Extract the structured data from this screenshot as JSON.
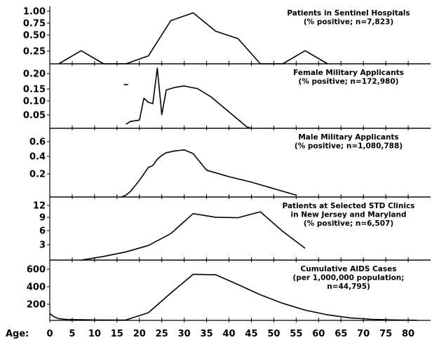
{
  "chart_data": {
    "type": "line",
    "x_axis": {
      "label": "Age:",
      "ticks": [
        0,
        5,
        10,
        15,
        20,
        25,
        30,
        35,
        40,
        45,
        50,
        55,
        60,
        65,
        70,
        75,
        80
      ],
      "range": [
        0,
        85
      ]
    },
    "panels": [
      {
        "title_lines": [
          "Patients in Sentinel Hospitals",
          "(% positive; n=7,823)"
        ],
        "ylim": [
          0,
          1.0
        ],
        "yticks": [
          "1.00",
          "0.75",
          "0.50",
          "0.25"
        ],
        "ytick_values": [
          1.0,
          0.75,
          0.5,
          0.25
        ],
        "series": [
          {
            "x": [
              2,
              7,
              12,
              17,
              22,
              27,
              32,
              37,
              42,
              47,
              52,
              57,
              62
            ],
            "y": [
              0,
              0.25,
              0,
              0,
              0.15,
              0.82,
              0.97,
              0.62,
              0.48,
              0,
              0,
              0.25,
              0
            ]
          }
        ]
      },
      {
        "title_lines": [
          "Female Military Applicants",
          "(% positive; n=172,980)"
        ],
        "ylim": [
          0,
          0.22
        ],
        "yticks": [
          "0.20",
          "0.15",
          "0.10",
          "0.05"
        ],
        "ytick_values": [
          0.2,
          0.15,
          0.1,
          0.05
        ],
        "series": [
          {
            "x": [
              17,
              18,
              20,
              21,
              22,
              23,
              24,
              25,
              26,
              28,
              30,
              33,
              36,
              40,
              44,
              45
            ],
            "y": [
              0.015,
              0.025,
              0.03,
              0.11,
              0.095,
              0.09,
              0.22,
              0.05,
              0.14,
              0.15,
              0.155,
              0.145,
              0.115,
              0.06,
              0.005,
              0
            ]
          },
          {
            "x": [
              16.5,
              17.5
            ],
            "y": [
              0.16,
              0.16
            ]
          }
        ]
      },
      {
        "title_lines": [
          "Male Military Applicants",
          "(% positive; n=1,080,788)"
        ],
        "ylim": [
          0,
          0.6
        ],
        "yticks": [
          "0.6",
          "0.4",
          "0.2"
        ],
        "ytick_values": [
          0.6,
          0.4,
          0.2
        ],
        "series": [
          {
            "x": [
              16,
              17,
              18,
              20,
              22,
              23,
              24,
              25,
              26,
              28,
              30,
              32,
              35,
              40,
              45,
              50,
              55
            ],
            "y": [
              0,
              0.02,
              0.06,
              0.18,
              0.32,
              0.34,
              0.41,
              0.45,
              0.48,
              0.5,
              0.51,
              0.47,
              0.29,
              0.22,
              0.16,
              0.09,
              0.02
            ]
          }
        ]
      },
      {
        "title_lines": [
          "Patients at Selected STD Clinics",
          "in New Jersey and Maryland",
          "(% positive; n=6,507)"
        ],
        "ylim": [
          0,
          12
        ],
        "yticks": [
          "12",
          "9",
          "6",
          "3"
        ],
        "ytick_values": [
          12,
          9,
          6,
          3
        ],
        "series": [
          {
            "x": [
              7,
              12,
              17,
              22,
              27,
              32,
              37,
              42,
              47,
              52,
              57
            ],
            "y": [
              0,
              0.8,
              1.8,
              3.2,
              5.8,
              10.2,
              9.4,
              9.3,
              10.6,
              6.3,
              2.6
            ]
          }
        ]
      },
      {
        "title_lines": [
          "Cumulative AIDS Cases",
          "(per 1,000,000 population;",
          "n=44,795)"
        ],
        "ylim": [
          0,
          600
        ],
        "yticks": [
          "600",
          "400",
          "200"
        ],
        "ytick_values": [
          600,
          400,
          200
        ],
        "series": [
          {
            "x": [
              0,
              1,
              2,
              4,
              7,
              10,
              14,
              17,
              22,
              27,
              32,
              37,
              42,
              47,
              52,
              57,
              62,
              67,
              72,
              77,
              82
            ],
            "y": [
              80,
              40,
              20,
              10,
              8,
              5,
              3,
              5,
              90,
              320,
              540,
              535,
              420,
              300,
              200,
              120,
              65,
              30,
              12,
              5,
              2
            ]
          }
        ]
      }
    ]
  }
}
